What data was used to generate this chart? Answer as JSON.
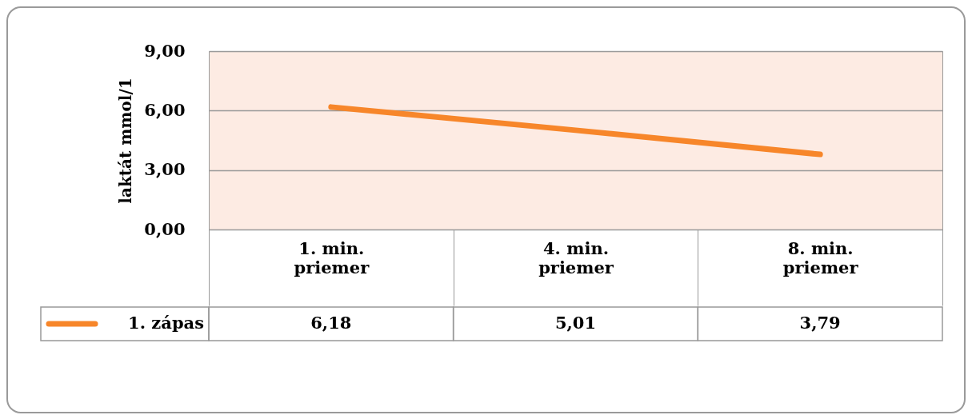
{
  "chart_data": {
    "type": "line",
    "ylabel": "laktát mmol/1",
    "categories": [
      "1. min. priemer",
      "4. min. priemer",
      "8. min. priemer"
    ],
    "series": [
      {
        "name": "1. zápas",
        "color": "#f7862a",
        "values": [
          6.18,
          5.01,
          3.79
        ],
        "value_labels": [
          "6,18",
          "5,01",
          "3,79"
        ]
      }
    ],
    "ylim": [
      0,
      9
    ],
    "yticks": [
      {
        "value": 0,
        "label": "0,00"
      },
      {
        "value": 3,
        "label": "3,00"
      },
      {
        "value": 6,
        "label": "6,00"
      },
      {
        "value": 9,
        "label": "9,00"
      }
    ],
    "grid": "y",
    "legend": "bottom left",
    "marker": "none",
    "line_style": "solid"
  }
}
